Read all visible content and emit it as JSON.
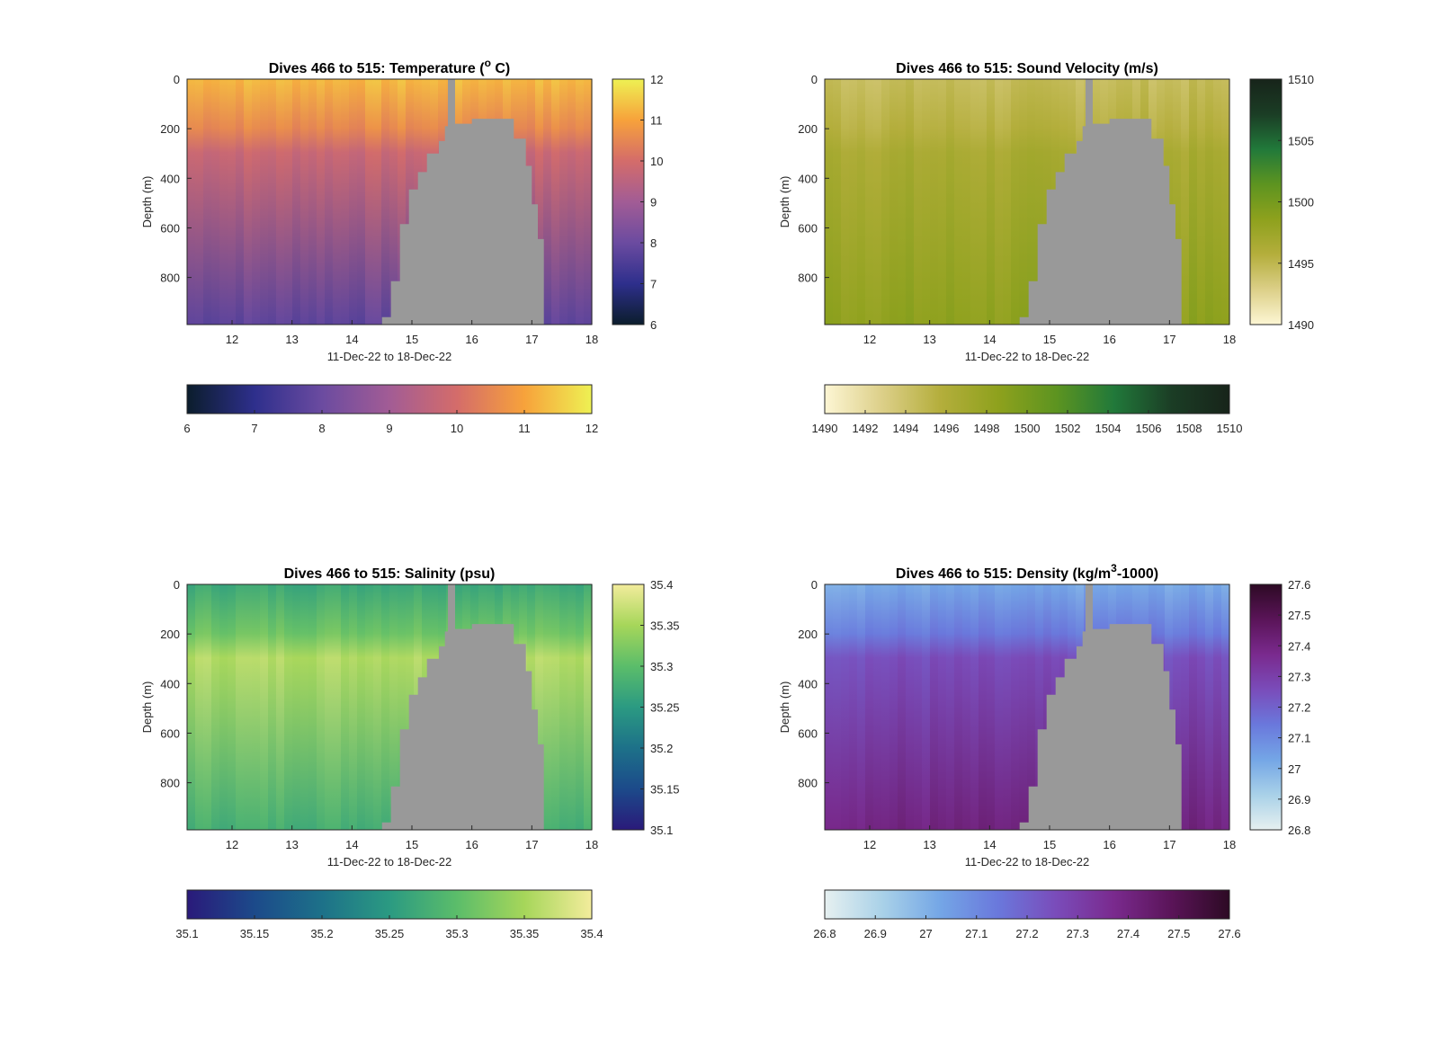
{
  "chart_data": [
    {
      "type": "heatmap",
      "title_prefix": "Dives 466 to 515: Temperature (",
      "title_sup": "o",
      "title_suffix": " C)",
      "xlabel": "11-Dec-22 to 18-Dec-22",
      "ylabel": "Depth (m)",
      "x_ticks": [
        "12",
        "13",
        "14",
        "15",
        "16",
        "17",
        "18"
      ],
      "xlim": [
        11.25,
        18.0
      ],
      "y_ticks": [
        "0",
        "200",
        "400",
        "600",
        "800"
      ],
      "ylim": [
        0,
        990
      ],
      "y_reversed": true,
      "colorbar_label_ticks": [
        "12",
        "11",
        "10",
        "9",
        "8",
        "7",
        "6"
      ],
      "colorbar_h_ticks": [
        "6",
        "7",
        "8",
        "9",
        "10",
        "11",
        "12"
      ],
      "clim": [
        6,
        12
      ],
      "colormap": [
        "#0b1d2c",
        "#2e2f8c",
        "#6b4ba0",
        "#a25c95",
        "#d46c6a",
        "#f7a23b",
        "#eef153"
      ],
      "values": {
        "surface": 11.3,
        "mid": 9.8,
        "bottom": 7.8
      },
      "no_data_color": "#999999"
    },
    {
      "type": "heatmap",
      "title_prefix": "Dives 466 to 515: Sound Velocity (m/s)",
      "title_sup": "",
      "title_suffix": "",
      "xlabel": "11-Dec-22 to 18-Dec-22",
      "ylabel": "Depth (m)",
      "x_ticks": [
        "12",
        "13",
        "14",
        "15",
        "16",
        "17",
        "18"
      ],
      "xlim": [
        11.25,
        18.0
      ],
      "y_ticks": [
        "0",
        "200",
        "400",
        "600",
        "800"
      ],
      "ylim": [
        0,
        990
      ],
      "y_reversed": true,
      "colorbar_label_ticks": [
        "1510",
        "1505",
        "1500",
        "1495",
        "1490"
      ],
      "colorbar_h_ticks": [
        "1490",
        "1492",
        "1494",
        "1496",
        "1498",
        "1500",
        "1502",
        "1504",
        "1506",
        "1508",
        "1510"
      ],
      "clim": [
        1490,
        1510
      ],
      "colormap": [
        "#fdf6d4",
        "#dccf88",
        "#b4ae3c",
        "#8ea11d",
        "#5d9420",
        "#21793a",
        "#1b3d25",
        "#17241a"
      ],
      "values": {
        "surface": 1494.5,
        "mid": 1496.5,
        "bottom": 1498.5
      },
      "no_data_color": "#999999"
    },
    {
      "type": "heatmap",
      "title_prefix": "Dives 466 to 515: Salinity (psu)",
      "title_sup": "",
      "title_suffix": "",
      "xlabel": "11-Dec-22 to 18-Dec-22",
      "ylabel": "Depth (m)",
      "x_ticks": [
        "12",
        "13",
        "14",
        "15",
        "16",
        "17",
        "18"
      ],
      "xlim": [
        11.25,
        18.0
      ],
      "y_ticks": [
        "0",
        "200",
        "400",
        "600",
        "800"
      ],
      "ylim": [
        0,
        990
      ],
      "y_reversed": true,
      "colorbar_label_ticks": [
        "35.4",
        "35.35",
        "35.3",
        "35.25",
        "35.2",
        "35.15",
        "35.1"
      ],
      "colorbar_h_ticks": [
        "35.1",
        "35.15",
        "35.2",
        "35.25",
        "35.3",
        "35.35",
        "35.4"
      ],
      "clim": [
        35.1,
        35.4
      ],
      "colormap": [
        "#2a1a7a",
        "#1c4a8a",
        "#1d7189",
        "#2b9a82",
        "#5bbd6a",
        "#a6d65a",
        "#f3ec9c"
      ],
      "values": {
        "surface": 35.27,
        "mid": 35.36,
        "bottom": 35.28
      },
      "no_data_color": "#999999"
    },
    {
      "type": "heatmap",
      "title_prefix": "Dives 466 to 515: Density (kg/m",
      "title_sup": "3",
      "title_suffix": "-1000)",
      "xlabel": "11-Dec-22 to 18-Dec-22",
      "ylabel": "Depth (m)",
      "x_ticks": [
        "12",
        "13",
        "14",
        "15",
        "16",
        "17",
        "18"
      ],
      "xlim": [
        11.25,
        18.0
      ],
      "y_ticks": [
        "0",
        "200",
        "400",
        "600",
        "800"
      ],
      "ylim": [
        0,
        990
      ],
      "y_reversed": true,
      "colorbar_label_ticks": [
        "27.6",
        "27.5",
        "27.4",
        "27.3",
        "27.2",
        "27.1",
        "27",
        "26.9",
        "26.8"
      ],
      "colorbar_h_ticks": [
        "26.8",
        "26.9",
        "27",
        "27.1",
        "27.2",
        "27.3",
        "27.4",
        "27.5",
        "27.6"
      ],
      "clim": [
        26.8,
        27.6
      ],
      "colormap": [
        "#e6f0f0",
        "#a9d1e8",
        "#74a6e6",
        "#6a78dc",
        "#7a4cba",
        "#7a2a8e",
        "#5a1458",
        "#2d0a24"
      ],
      "values": {
        "surface": 27.02,
        "mid": 27.25,
        "bottom": 27.4
      },
      "no_data_color": "#999999"
    }
  ]
}
